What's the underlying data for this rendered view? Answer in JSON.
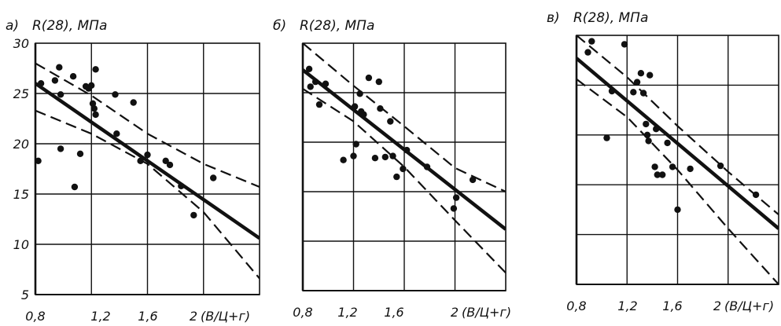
{
  "chart_data": [
    {
      "type": "scatter",
      "panel_label": "а)",
      "ylabel": "R(28), МПа",
      "xlabel": "(В/Ц+г)",
      "x_ticks": [
        "0,8",
        "1,2",
        "1,6",
        "2"
      ],
      "y_ticks": [
        "30",
        "25",
        "20",
        "15",
        "10",
        "5"
      ],
      "xlim": [
        0.8,
        2.4
      ],
      "ylim": [
        5,
        30
      ],
      "grid": true,
      "points": [
        [
          0.82,
          18.3
        ],
        [
          0.84,
          26.0
        ],
        [
          0.94,
          26.3
        ],
        [
          0.97,
          27.6
        ],
        [
          0.98,
          24.9
        ],
        [
          0.98,
          19.5
        ],
        [
          1.07,
          26.7
        ],
        [
          1.08,
          15.7
        ],
        [
          1.12,
          19.0
        ],
        [
          1.16,
          25.7
        ],
        [
          1.18,
          25.5
        ],
        [
          1.2,
          25.8
        ],
        [
          1.21,
          24.0
        ],
        [
          1.22,
          23.5
        ],
        [
          1.23,
          27.4
        ],
        [
          1.23,
          22.9
        ],
        [
          1.37,
          24.9
        ],
        [
          1.38,
          21.0
        ],
        [
          1.5,
          24.1
        ],
        [
          1.55,
          18.3
        ],
        [
          1.6,
          18.9
        ],
        [
          1.73,
          18.3
        ],
        [
          1.76,
          17.9
        ],
        [
          1.84,
          15.8
        ],
        [
          1.93,
          12.9
        ],
        [
          2.07,
          16.6
        ]
      ],
      "fit_line": [
        [
          0.8,
          26.0
        ],
        [
          2.4,
          10.6
        ]
      ],
      "upper_band": [
        [
          0.8,
          28.0
        ],
        [
          1.2,
          24.8
        ],
        [
          1.6,
          21.0
        ],
        [
          2.0,
          18.0
        ],
        [
          2.4,
          15.7
        ]
      ],
      "lower_band": [
        [
          0.8,
          23.3
        ],
        [
          1.2,
          21.0
        ],
        [
          1.6,
          18.0
        ],
        [
          2.0,
          13.2
        ],
        [
          2.4,
          6.6
        ]
      ]
    },
    {
      "type": "scatter",
      "panel_label": "б)",
      "ylabel": "R(28), МПа",
      "xlabel": "(В/Ц+г)",
      "x_ticks": [
        "0,8",
        "1,2",
        "1,6",
        "2"
      ],
      "y_ticks": [],
      "xlim": [
        0.8,
        2.4
      ],
      "ylim": [
        5,
        30
      ],
      "grid": true,
      "points": [
        [
          0.85,
          27.4
        ],
        [
          0.86,
          25.6
        ],
        [
          0.9,
          26.1
        ],
        [
          0.93,
          23.8
        ],
        [
          0.98,
          25.9
        ],
        [
          1.12,
          18.2
        ],
        [
          1.2,
          18.6
        ],
        [
          1.21,
          23.6
        ],
        [
          1.22,
          19.8
        ],
        [
          1.25,
          24.9
        ],
        [
          1.26,
          23.1
        ],
        [
          1.28,
          22.8
        ],
        [
          1.32,
          26.5
        ],
        [
          1.37,
          18.4
        ],
        [
          1.4,
          26.1
        ],
        [
          1.41,
          23.4
        ],
        [
          1.45,
          18.5
        ],
        [
          1.49,
          22.1
        ],
        [
          1.51,
          18.6
        ],
        [
          1.54,
          16.5
        ],
        [
          1.59,
          17.3
        ],
        [
          1.62,
          19.2
        ],
        [
          1.78,
          17.5
        ],
        [
          1.99,
          13.3
        ],
        [
          2.01,
          14.4
        ],
        [
          2.14,
          16.2
        ]
      ],
      "fit_line": [
        [
          0.8,
          27.3
        ],
        [
          2.4,
          11.2
        ]
      ],
      "upper_band": [
        [
          0.8,
          30.0
        ],
        [
          1.2,
          25.7
        ],
        [
          1.6,
          21.6
        ],
        [
          2.0,
          17.4
        ],
        [
          2.4,
          15.0
        ]
      ],
      "lower_band": [
        [
          0.8,
          25.4
        ],
        [
          1.2,
          22.1
        ],
        [
          1.6,
          17.5
        ],
        [
          2.0,
          12.1
        ],
        [
          2.4,
          6.8
        ]
      ]
    },
    {
      "type": "scatter",
      "panel_label": "в)",
      "ylabel": "R(28), МПа",
      "xlabel": "(В/Ц+г)",
      "x_ticks": [
        "0,8",
        "1,2",
        "1,6",
        "2"
      ],
      "y_ticks": [],
      "xlim": [
        0.8,
        2.4
      ],
      "ylim": [
        5,
        30
      ],
      "grid": true,
      "points": [
        [
          0.89,
          28.3
        ],
        [
          0.92,
          29.4
        ],
        [
          1.04,
          19.7
        ],
        [
          1.08,
          24.4
        ],
        [
          1.18,
          29.1
        ],
        [
          1.25,
          24.3
        ],
        [
          1.28,
          25.3
        ],
        [
          1.31,
          26.2
        ],
        [
          1.33,
          24.2
        ],
        [
          1.35,
          21.1
        ],
        [
          1.36,
          20.0
        ],
        [
          1.37,
          19.4
        ],
        [
          1.38,
          26.0
        ],
        [
          1.42,
          16.8
        ],
        [
          1.43,
          20.6
        ],
        [
          1.44,
          16.0
        ],
        [
          1.48,
          16.0
        ],
        [
          1.52,
          19.2
        ],
        [
          1.56,
          16.8
        ],
        [
          1.6,
          12.5
        ],
        [
          1.7,
          16.6
        ],
        [
          1.94,
          16.9
        ],
        [
          2.22,
          14.0
        ]
      ],
      "fit_line": [
        [
          0.8,
          27.7
        ],
        [
          2.4,
          10.6
        ]
      ],
      "upper_band": [
        [
          0.8,
          30.0
        ],
        [
          1.2,
          25.8
        ],
        [
          1.6,
          20.9
        ],
        [
          2.0,
          16.3
        ],
        [
          2.4,
          12.0
        ]
      ],
      "lower_band": [
        [
          0.8,
          25.6
        ],
        [
          1.2,
          21.8
        ],
        [
          1.6,
          16.5
        ],
        [
          2.0,
          10.6
        ],
        [
          2.4,
          5.0
        ]
      ]
    }
  ]
}
